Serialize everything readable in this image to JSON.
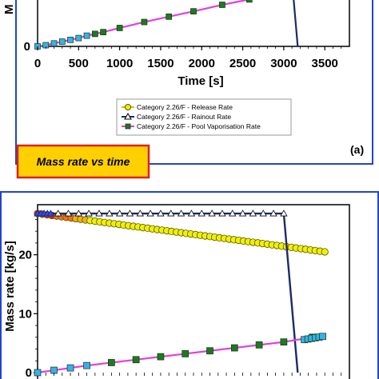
{
  "colors": {
    "release": "#f0f000",
    "release_stroke": "#555500",
    "rainout_line": "#1a2a6b",
    "pool_line": "#e040e0",
    "pool_marker": "#1f7a1f",
    "pool_marker_early": "#3ab0e8",
    "frame": "#2244cc",
    "banner_fill": "#ffd000",
    "banner_border": "#e02020"
  },
  "panel_a": {
    "label": "(a)",
    "banner": "Mass rate vs time",
    "legend": [
      {
        "name": "Category 2.26/F - Release Rate",
        "icon": "yellow-circle-marker"
      },
      {
        "name": "Category 2.26/F - Rainout Rate",
        "icon": "white-triangle-marker"
      },
      {
        "name": "Category 2.26/F - Pool Vaporisation Rate",
        "icon": "green-square-marker"
      }
    ]
  },
  "chart_data": [
    {
      "type": "line",
      "title": "",
      "xlabel": "Time [s]",
      "ylabel": "M",
      "x_ticks": [
        "0",
        "500",
        "1000",
        "1500",
        "2000",
        "2500",
        "3000",
        "3500"
      ],
      "y_ticks": [
        "0"
      ],
      "xlim": [
        0,
        3800
      ],
      "ylim": [
        0,
        28
      ],
      "grid": false,
      "series": [
        {
          "name": "Category 2.26/F - Rainout Rate",
          "x": [
            3000,
            3170
          ],
          "y": [
            27,
            0
          ]
        },
        {
          "name": "Category 2.26/F - Pool Vaporisation Rate",
          "x": [
            0,
            100,
            200,
            300,
            400,
            500,
            600,
            700,
            800,
            1000,
            1300,
            1600,
            1900,
            2250,
            2580
          ],
          "y": [
            0.0,
            0.2,
            0.5,
            0.8,
            1.1,
            1.4,
            1.8,
            2.1,
            2.4,
            3.1,
            4.1,
            5.0,
            5.9,
            7.0,
            7.9
          ]
        }
      ]
    },
    {
      "type": "line",
      "title": "",
      "xlabel": "",
      "ylabel": "Mass rate [kg/s]",
      "y_ticks": [
        "0",
        "10",
        "20"
      ],
      "xlim": [
        0,
        3800
      ],
      "ylim": [
        0,
        28.5
      ],
      "grid": false,
      "series": [
        {
          "name": "Category 2.26/F - Release Rate",
          "x": [
            0,
            3500
          ],
          "y": [
            27,
            20.5
          ]
        },
        {
          "name": "Category 2.26/F - Rainout Rate",
          "x": [
            0,
            300,
            600,
            900,
            1200,
            1500,
            1800,
            2100,
            2400,
            2700,
            3000,
            3170
          ],
          "y": [
            27,
            27,
            27,
            27,
            27,
            27,
            27,
            27,
            27,
            27,
            27,
            0
          ]
        },
        {
          "name": "Category 2.26/F - Pool Vaporisation Rate",
          "x": [
            0,
            200,
            400,
            600,
            900,
            1200,
            1500,
            1800,
            2100,
            2400,
            2700,
            3000,
            3350
          ],
          "y": [
            0.0,
            0.4,
            0.8,
            1.2,
            1.7,
            2.2,
            2.7,
            3.2,
            3.7,
            4.2,
            4.7,
            5.2,
            6.0
          ]
        }
      ]
    }
  ]
}
